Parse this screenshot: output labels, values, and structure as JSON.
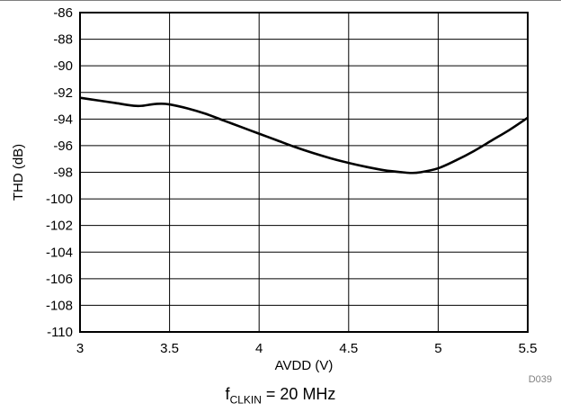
{
  "chart_data": {
    "type": "line",
    "title": "",
    "xlabel": "AVDD (V)",
    "ylabel": "THD (dB)",
    "xlim": [
      3,
      5.5
    ],
    "ylim": [
      -110,
      -86
    ],
    "x_ticks": [
      "3",
      "3.5",
      "4",
      "4.5",
      "5",
      "5.5"
    ],
    "y_ticks": [
      "-86",
      "-88",
      "-90",
      "-92",
      "-94",
      "-96",
      "-98",
      "-100",
      "-102",
      "-104",
      "-106",
      "-108",
      "-110"
    ],
    "grid": true,
    "series": [
      {
        "color": "#000000",
        "x": [
          3.0,
          3.1,
          3.2,
          3.3,
          3.35,
          3.4,
          3.45,
          3.5,
          3.6,
          3.7,
          3.8,
          3.9,
          4.0,
          4.1,
          4.2,
          4.3,
          4.4,
          4.5,
          4.6,
          4.7,
          4.8,
          4.85,
          4.9,
          5.0,
          5.1,
          5.2,
          5.3,
          5.4,
          5.5
        ],
        "y": [
          -92.4,
          -92.6,
          -92.8,
          -93.0,
          -93.0,
          -92.9,
          -92.85,
          -92.9,
          -93.2,
          -93.6,
          -94.1,
          -94.6,
          -95.1,
          -95.6,
          -96.1,
          -96.55,
          -96.95,
          -97.3,
          -97.6,
          -97.85,
          -98.0,
          -98.05,
          -98.0,
          -97.7,
          -97.1,
          -96.4,
          -95.6,
          -94.8,
          -93.9
        ]
      }
    ]
  },
  "figure_code": "D039",
  "caption": {
    "prefix": "f",
    "subscript": "CLKIN",
    "suffix": " = 20 MHz"
  }
}
